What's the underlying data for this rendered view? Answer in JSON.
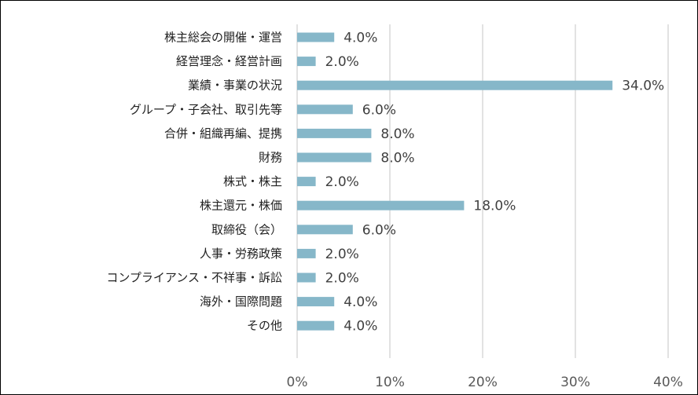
{
  "chart_data": {
    "type": "bar",
    "orientation": "horizontal",
    "categories": [
      "株主総会の開催・運営",
      "経営理念・経営計画",
      "業績・事業の状況",
      "グループ・子会社、取引先等",
      "合併・組織再編、提携",
      "財務",
      "株式・株主",
      "株主還元・株価",
      "取締役（会）",
      "人事・労務政策",
      "コンプライアンス・不祥事・訴訟",
      "海外・国際問題",
      "その他"
    ],
    "values": [
      4.0,
      2.0,
      34.0,
      6.0,
      8.0,
      8.0,
      2.0,
      18.0,
      6.0,
      2.0,
      2.0,
      4.0,
      4.0
    ],
    "data_labels": [
      "4.0%",
      "2.0%",
      "34.0%",
      "6.0%",
      "8.0%",
      "8.0%",
      "2.0%",
      "18.0%",
      "6.0%",
      "2.0%",
      "2.0%",
      "4.0%",
      "4.0%"
    ],
    "xlim": [
      0,
      40
    ],
    "xticks": [
      0,
      10,
      20,
      30,
      40
    ],
    "xtick_labels": [
      "0%",
      "10%",
      "20%",
      "30%",
      "40%"
    ],
    "grid": true,
    "legend": false,
    "colors": {
      "bar": "#86b7c9",
      "grid": "#d9d9d9"
    },
    "title": "",
    "xlabel": "",
    "ylabel": ""
  }
}
